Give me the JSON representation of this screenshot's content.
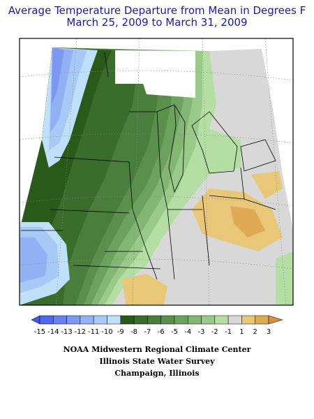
{
  "header": {
    "title": "Average Temperature Departure from Mean in Degrees F",
    "subtitle": "March 25, 2009 to March 31, 2009"
  },
  "legend": {
    "labels": [
      "-15",
      "-14",
      "-13",
      "-12",
      "-11",
      "-10",
      "-9",
      "-8",
      "-7",
      "-6",
      "-5",
      "-4",
      "-3",
      "-2",
      "-1",
      "1",
      "2",
      "3"
    ],
    "colors": [
      "#4455ee",
      "#5066ee",
      "#6680f0",
      "#7c98f2",
      "#92b0f4",
      "#a8c8f6",
      "#c0e0fa",
      "#2a5a1a",
      "#3a6c2c",
      "#4a7e3c",
      "#5a904c",
      "#6ca25e",
      "#82b672",
      "#9aca8a",
      "#b4dea4",
      "#d8d8d8",
      "#e8c878",
      "#e0aa55",
      "#d89040"
    ]
  },
  "credits": [
    "NOAA Midwestern Regional Climate Center",
    "Illinois State Water Survey",
    "Champaign, Illinois"
  ]
}
